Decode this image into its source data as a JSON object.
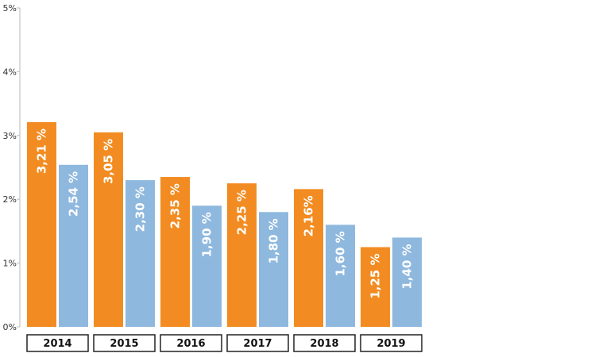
{
  "chart_data": {
    "type": "bar",
    "title": "",
    "xlabel": "",
    "ylabel": "",
    "categories": [
      "2014",
      "2015",
      "2016",
      "2017",
      "2018",
      "2019"
    ],
    "series": [
      {
        "color": "#f28c22",
        "values": [
          3.21,
          3.05,
          2.35,
          2.25,
          2.16,
          1.25
        ],
        "labels": [
          "3,21 %",
          "3,05 %",
          "2,35 %",
          "2,25 %",
          "2,16%",
          "1,25 %"
        ]
      },
      {
        "color": "#8fb8de",
        "values": [
          2.54,
          2.3,
          1.9,
          1.8,
          1.6,
          1.4
        ],
        "labels": [
          "2,54 %",
          "2,30 %",
          "1,90 %",
          "1,80 %",
          "1,60 %",
          "1,40 %"
        ]
      }
    ],
    "ylim": [
      0,
      5
    ],
    "yticks": [
      0,
      1,
      2,
      3,
      4,
      5
    ],
    "ytick_labels": [
      "0%",
      "1%",
      "2%",
      "3%",
      "4%",
      "5%"
    ],
    "grid": false,
    "legend": "none"
  }
}
